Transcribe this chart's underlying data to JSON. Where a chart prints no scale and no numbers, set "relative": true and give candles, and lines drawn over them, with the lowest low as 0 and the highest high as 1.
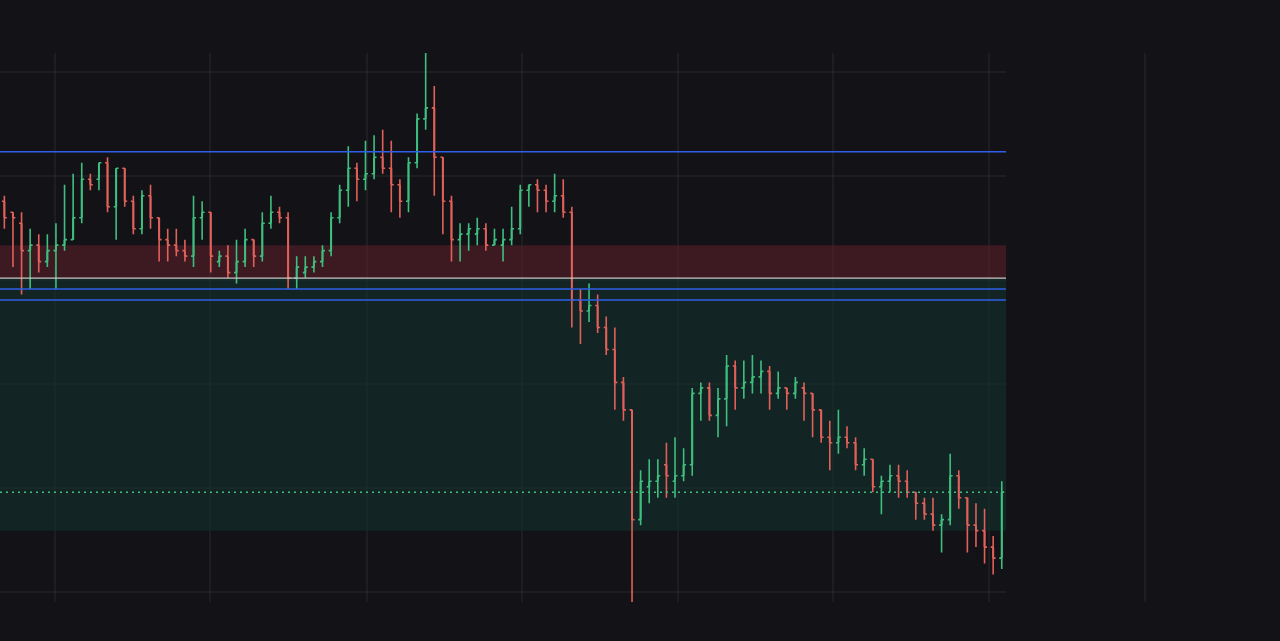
{
  "chart_data": {
    "type": "candlestick",
    "relative": true,
    "grid": true,
    "legend": false,
    "categories": [
      null,
      null,
      null,
      null,
      null,
      null,
      null,
      null,
      null,
      null,
      null,
      null,
      null,
      null,
      null,
      null,
      null,
      null,
      null,
      null,
      null,
      null,
      null,
      null,
      null,
      null,
      null,
      null,
      null,
      null,
      null,
      null,
      null,
      null,
      null,
      null,
      null,
      null,
      null,
      null,
      null,
      null,
      null,
      null,
      null,
      null,
      null,
      null,
      null,
      null,
      null,
      null,
      null,
      null,
      null,
      null,
      null,
      null,
      null,
      null,
      null,
      null,
      null,
      null,
      null,
      null,
      null,
      null,
      null,
      null,
      null,
      null,
      null,
      null,
      null,
      null,
      null,
      null,
      null,
      null,
      null,
      null,
      null,
      null,
      null,
      null,
      null,
      null,
      null,
      null,
      null,
      null,
      null,
      null,
      null,
      null,
      null,
      null,
      null,
      null,
      null,
      null,
      null,
      null,
      null,
      null,
      null,
      null,
      null,
      null,
      null,
      null,
      null,
      null,
      null,
      null,
      null
    ],
    "ohlc": [
      [
        0.73,
        0.74,
        0.68,
        0.7
      ],
      [
        0.71,
        0.71,
        0.61,
        0.7
      ],
      [
        0.69,
        0.71,
        0.56,
        0.64
      ],
      [
        0.64,
        0.68,
        0.57,
        0.65
      ],
      [
        0.65,
        0.67,
        0.6,
        0.62
      ],
      [
        0.62,
        0.67,
        0.61,
        0.64
      ],
      [
        0.64,
        0.69,
        0.57,
        0.65
      ],
      [
        0.65,
        0.76,
        0.64,
        0.66
      ],
      [
        0.66,
        0.78,
        0.66,
        0.7
      ],
      [
        0.7,
        0.8,
        0.69,
        0.77
      ],
      [
        0.77,
        0.78,
        0.75,
        0.76
      ],
      [
        0.77,
        0.8,
        0.75,
        0.8
      ],
      [
        0.8,
        0.81,
        0.71,
        0.72
      ],
      [
        0.72,
        0.79,
        0.66,
        0.79
      ],
      [
        0.79,
        0.79,
        0.72,
        0.73
      ],
      [
        0.73,
        0.74,
        0.67,
        0.68
      ],
      [
        0.68,
        0.75,
        0.67,
        0.74
      ],
      [
        0.74,
        0.76,
        0.68,
        0.7
      ],
      [
        0.7,
        0.7,
        0.62,
        0.66
      ],
      [
        0.66,
        0.68,
        0.62,
        0.65
      ],
      [
        0.65,
        0.68,
        0.63,
        0.64
      ],
      [
        0.64,
        0.66,
        0.62,
        0.63
      ],
      [
        0.63,
        0.74,
        0.61,
        0.7
      ],
      [
        0.7,
        0.73,
        0.66,
        0.71
      ],
      [
        0.71,
        0.71,
        0.6,
        0.63
      ],
      [
        0.62,
        0.64,
        0.61,
        0.63
      ],
      [
        0.63,
        0.65,
        0.59,
        0.6
      ],
      [
        0.6,
        0.66,
        0.58,
        0.62
      ],
      [
        0.62,
        0.68,
        0.61,
        0.66
      ],
      [
        0.66,
        0.66,
        0.61,
        0.63
      ],
      [
        0.63,
        0.71,
        0.62,
        0.69
      ],
      [
        0.69,
        0.74,
        0.68,
        0.71
      ],
      [
        0.71,
        0.72,
        0.69,
        0.7
      ],
      [
        0.7,
        0.71,
        0.57,
        0.59
      ],
      [
        0.59,
        0.63,
        0.57,
        0.61
      ],
      [
        0.6,
        0.63,
        0.59,
        0.61
      ],
      [
        0.61,
        0.63,
        0.6,
        0.62
      ],
      [
        0.62,
        0.65,
        0.61,
        0.64
      ],
      [
        0.64,
        0.71,
        0.63,
        0.7
      ],
      [
        0.7,
        0.76,
        0.69,
        0.75
      ],
      [
        0.75,
        0.83,
        0.72,
        0.79
      ],
      [
        0.79,
        0.8,
        0.73,
        0.77
      ],
      [
        0.77,
        0.84,
        0.75,
        0.78
      ],
      [
        0.78,
        0.85,
        0.77,
        0.81
      ],
      [
        0.81,
        0.86,
        0.78,
        0.79
      ],
      [
        0.79,
        0.84,
        0.71,
        0.76
      ],
      [
        0.76,
        0.77,
        0.7,
        0.73
      ],
      [
        0.73,
        0.81,
        0.71,
        0.8
      ],
      [
        0.8,
        0.89,
        0.79,
        0.88
      ],
      [
        0.88,
        1.0,
        0.86,
        0.9
      ],
      [
        0.9,
        0.94,
        0.74,
        0.81
      ],
      [
        0.81,
        0.81,
        0.67,
        0.73
      ],
      [
        0.73,
        0.74,
        0.62,
        0.66
      ],
      [
        0.66,
        0.69,
        0.62,
        0.67
      ],
      [
        0.67,
        0.69,
        0.64,
        0.68
      ],
      [
        0.67,
        0.7,
        0.65,
        0.68
      ],
      [
        0.68,
        0.69,
        0.64,
        0.65
      ],
      [
        0.65,
        0.68,
        0.65,
        0.66
      ],
      [
        0.65,
        0.68,
        0.62,
        0.66
      ],
      [
        0.66,
        0.72,
        0.65,
        0.68
      ],
      [
        0.68,
        0.76,
        0.67,
        0.75
      ],
      [
        0.75,
        0.76,
        0.72,
        0.76
      ],
      [
        0.76,
        0.77,
        0.71,
        0.75
      ],
      [
        0.75,
        0.76,
        0.71,
        0.73
      ],
      [
        0.73,
        0.78,
        0.71,
        0.74
      ],
      [
        0.74,
        0.77,
        0.7,
        0.71
      ],
      [
        0.71,
        0.72,
        0.5,
        0.55
      ],
      [
        0.55,
        0.57,
        0.47,
        0.53
      ],
      [
        0.53,
        0.58,
        0.51,
        0.54
      ],
      [
        0.54,
        0.56,
        0.49,
        0.5
      ],
      [
        0.5,
        0.52,
        0.45,
        0.46
      ],
      [
        0.46,
        0.5,
        0.35,
        0.4
      ],
      [
        0.4,
        0.41,
        0.33,
        0.35
      ],
      [
        0.35,
        0.35,
        0.0,
        0.15
      ],
      [
        0.15,
        0.24,
        0.14,
        0.22
      ],
      [
        0.21,
        0.26,
        0.18,
        0.22
      ],
      [
        0.22,
        0.26,
        0.19,
        0.23
      ],
      [
        0.25,
        0.29,
        0.19,
        0.23
      ],
      [
        0.22,
        0.3,
        0.19,
        0.23
      ],
      [
        0.23,
        0.28,
        0.22,
        0.25
      ],
      [
        0.25,
        0.39,
        0.23,
        0.38
      ],
      [
        0.38,
        0.4,
        0.33,
        0.39
      ],
      [
        0.39,
        0.4,
        0.33,
        0.34
      ],
      [
        0.34,
        0.39,
        0.3,
        0.37
      ],
      [
        0.37,
        0.45,
        0.32,
        0.43
      ],
      [
        0.43,
        0.44,
        0.35,
        0.39
      ],
      [
        0.39,
        0.44,
        0.37,
        0.4
      ],
      [
        0.4,
        0.45,
        0.38,
        0.41
      ],
      [
        0.41,
        0.44,
        0.38,
        0.42
      ],
      [
        0.42,
        0.43,
        0.35,
        0.38
      ],
      [
        0.38,
        0.42,
        0.37,
        0.39
      ],
      [
        0.39,
        0.39,
        0.35,
        0.38
      ],
      [
        0.38,
        0.41,
        0.37,
        0.4
      ],
      [
        0.39,
        0.4,
        0.33,
        0.38
      ],
      [
        0.38,
        0.38,
        0.3,
        0.35
      ],
      [
        0.35,
        0.35,
        0.29,
        0.3
      ],
      [
        0.3,
        0.33,
        0.24,
        0.29
      ],
      [
        0.29,
        0.35,
        0.27,
        0.3
      ],
      [
        0.3,
        0.32,
        0.28,
        0.29
      ],
      [
        0.29,
        0.3,
        0.24,
        0.25
      ],
      [
        0.25,
        0.28,
        0.23,
        0.26
      ],
      [
        0.26,
        0.26,
        0.2,
        0.21
      ],
      [
        0.21,
        0.23,
        0.16,
        0.22
      ],
      [
        0.22,
        0.25,
        0.2,
        0.23
      ],
      [
        0.23,
        0.25,
        0.19,
        0.22
      ],
      [
        0.22,
        0.24,
        0.19,
        0.2
      ],
      [
        0.2,
        0.2,
        0.15,
        0.18
      ],
      [
        0.18,
        0.19,
        0.15,
        0.16
      ],
      [
        0.16,
        0.19,
        0.13,
        0.14
      ],
      [
        0.14,
        0.16,
        0.09,
        0.15
      ],
      [
        0.15,
        0.27,
        0.14,
        0.23
      ],
      [
        0.23,
        0.24,
        0.17,
        0.19
      ],
      [
        0.19,
        0.19,
        0.09,
        0.14
      ],
      [
        0.14,
        0.18,
        0.1,
        0.13
      ],
      [
        0.13,
        0.17,
        0.07,
        0.1
      ],
      [
        0.1,
        0.12,
        0.05,
        0.08
      ],
      [
        0.08,
        0.22,
        0.06,
        0.2
      ]
    ],
    "ref_lines": [
      {
        "axis": "y",
        "value": 0.82,
        "color": "#2f5fe8",
        "line_style": "solid"
      },
      {
        "axis": "y",
        "value": 0.57,
        "color": "#2f5fe8",
        "line_style": "solid"
      },
      {
        "axis": "y",
        "value": 0.55,
        "color": "#2f5fe8",
        "line_style": "solid"
      },
      {
        "axis": "y",
        "value": 0.59,
        "color": "#c8c8c8",
        "line_style": "solid"
      },
      {
        "axis": "y",
        "value": 0.2,
        "color": "#3fbf7f",
        "line_style": "dotted"
      }
    ],
    "bands": [
      {
        "axis": "y",
        "from": 0.59,
        "to": 0.65,
        "color": "#5a1f28"
      },
      {
        "axis": "y",
        "from": 0.13,
        "to": 0.59,
        "color": "#12302c"
      }
    ]
  }
}
